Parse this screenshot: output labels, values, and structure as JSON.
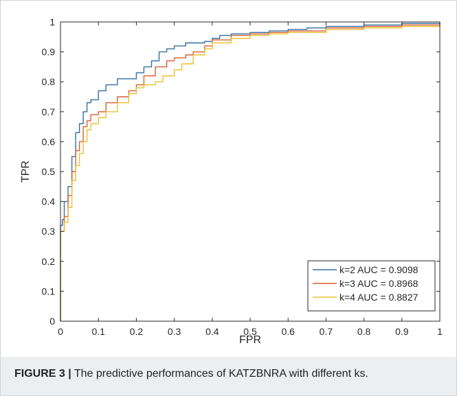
{
  "caption": {
    "label": "FIGURE 3 |",
    "text": " The predictive performances of KATZBNRA with different ks."
  },
  "chart_data": {
    "type": "line",
    "title": "",
    "xlabel": "FPR",
    "ylabel": "TPR",
    "xlim": [
      0,
      1
    ],
    "ylim": [
      0,
      1
    ],
    "xticks": [
      "0",
      "0.1",
      "0.2",
      "0.3",
      "0.4",
      "0.5",
      "0.6",
      "0.7",
      "0.8",
      "0.9",
      "1"
    ],
    "yticks": [
      "0",
      "0.1",
      "0.2",
      "0.3",
      "0.4",
      "0.5",
      "0.6",
      "0.7",
      "0.8",
      "0.9",
      "1"
    ],
    "grid": false,
    "legend_position": "bottom-right",
    "series": [
      {
        "name": "k=2 AUC = 0.9098",
        "color": "#2f6fa3",
        "x": [
          0,
          0,
          0.005,
          0.01,
          0.02,
          0.03,
          0.04,
          0.05,
          0.06,
          0.07,
          0.08,
          0.1,
          0.12,
          0.15,
          0.2,
          0.22,
          0.24,
          0.26,
          0.28,
          0.3,
          0.33,
          0.35,
          0.38,
          0.4,
          0.42,
          0.45,
          0.5,
          0.55,
          0.6,
          0.65,
          0.7,
          0.8,
          0.9,
          1
        ],
        "y": [
          0,
          0.32,
          0.34,
          0.4,
          0.45,
          0.55,
          0.63,
          0.66,
          0.7,
          0.73,
          0.74,
          0.77,
          0.79,
          0.81,
          0.83,
          0.85,
          0.87,
          0.9,
          0.91,
          0.92,
          0.93,
          0.93,
          0.935,
          0.945,
          0.955,
          0.96,
          0.965,
          0.97,
          0.975,
          0.98,
          0.985,
          0.99,
          0.995,
          1
        ]
      },
      {
        "name": "k=3 AUC = 0.8968",
        "color": "#d95f2e",
        "x": [
          0,
          0,
          0.01,
          0.02,
          0.03,
          0.04,
          0.05,
          0.06,
          0.07,
          0.08,
          0.1,
          0.12,
          0.15,
          0.18,
          0.2,
          0.22,
          0.25,
          0.28,
          0.3,
          0.33,
          0.35,
          0.38,
          0.4,
          0.45,
          0.5,
          0.55,
          0.6,
          0.7,
          0.8,
          0.9,
          1
        ],
        "y": [
          0,
          0.3,
          0.35,
          0.42,
          0.5,
          0.57,
          0.6,
          0.65,
          0.67,
          0.69,
          0.7,
          0.73,
          0.75,
          0.77,
          0.79,
          0.82,
          0.85,
          0.87,
          0.88,
          0.89,
          0.9,
          0.92,
          0.94,
          0.955,
          0.96,
          0.965,
          0.97,
          0.98,
          0.985,
          0.99,
          1
        ]
      },
      {
        "name": "k=4 AUC = 0.8827",
        "color": "#e8c02e",
        "x": [
          0,
          0,
          0.01,
          0.02,
          0.03,
          0.04,
          0.05,
          0.06,
          0.07,
          0.08,
          0.1,
          0.12,
          0.15,
          0.18,
          0.2,
          0.22,
          0.25,
          0.27,
          0.3,
          0.32,
          0.35,
          0.38,
          0.4,
          0.45,
          0.5,
          0.55,
          0.6,
          0.7,
          0.8,
          0.9,
          1
        ],
        "y": [
          0,
          0.3,
          0.33,
          0.38,
          0.47,
          0.52,
          0.56,
          0.6,
          0.64,
          0.66,
          0.68,
          0.7,
          0.73,
          0.76,
          0.78,
          0.79,
          0.8,
          0.82,
          0.84,
          0.86,
          0.89,
          0.91,
          0.93,
          0.945,
          0.955,
          0.96,
          0.965,
          0.975,
          0.98,
          0.985,
          0.99
        ]
      }
    ]
  }
}
